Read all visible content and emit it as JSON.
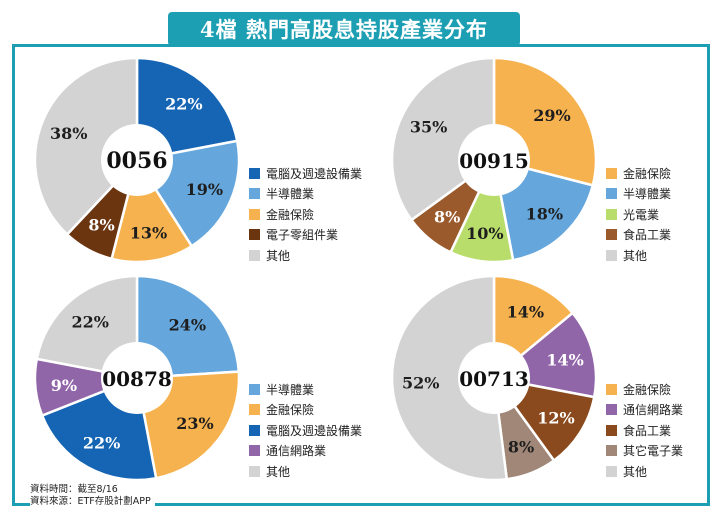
{
  "title": "4檔 熱門高股息持股產業分布",
  "footer": {
    "line1": "資料時間：截至8/16",
    "line2": "資料來源：ETF存股計劃APP"
  },
  "colors": {
    "frame": "#1c9fb3",
    "other": "#d3d3d3"
  },
  "chart_data": [
    {
      "type": "pie",
      "center_label": "0056",
      "slices": [
        {
          "label": "電腦及週邊設備業",
          "value": 22,
          "display": "22%",
          "color": "#1565b4"
        },
        {
          "label": "半導體業",
          "value": 19,
          "display": "19%",
          "color": "#65a6dc"
        },
        {
          "label": "金融保險",
          "value": 13,
          "display": "13%",
          "color": "#f6b24f"
        },
        {
          "label": "電子零組件業",
          "value": 8,
          "display": "8%",
          "color": "#6b3510"
        },
        {
          "label": "其他",
          "value": 38,
          "display": "38%",
          "color": "#d3d3d3"
        }
      ]
    },
    {
      "type": "pie",
      "center_label": "00915",
      "slices": [
        {
          "label": "金融保險",
          "value": 29,
          "display": "29%",
          "color": "#f6b24f"
        },
        {
          "label": "半導體業",
          "value": 18,
          "display": "18%",
          "color": "#65a6dc"
        },
        {
          "label": "光電業",
          "value": 10,
          "display": "10%",
          "color": "#b9dd6a"
        },
        {
          "label": "食品工業",
          "value": 8,
          "display": "8%",
          "color": "#9a5a2c"
        },
        {
          "label": "其他",
          "value": 35,
          "display": "35%",
          "color": "#d3d3d3"
        }
      ]
    },
    {
      "type": "pie",
      "center_label": "00878",
      "slices": [
        {
          "label": "半導體業",
          "value": 24,
          "display": "24%",
          "color": "#65a6dc"
        },
        {
          "label": "金融保險",
          "value": 23,
          "display": "23%",
          "color": "#f6b24f"
        },
        {
          "label": "電腦及週邊設備業",
          "value": 22,
          "display": "22%",
          "color": "#1565b4"
        },
        {
          "label": "通信網路業",
          "value": 9,
          "display": "9%",
          "color": "#9066a8"
        },
        {
          "label": "其他",
          "value": 22,
          "display": "22%",
          "color": "#d3d3d3"
        }
      ]
    },
    {
      "type": "pie",
      "center_label": "00713",
      "slices": [
        {
          "label": "金融保險",
          "value": 14,
          "display": "14%",
          "color": "#f6b24f"
        },
        {
          "label": "通信網路業",
          "value": 14,
          "display": "14%",
          "color": "#9066a8"
        },
        {
          "label": "食品工業",
          "value": 12,
          "display": "12%",
          "color": "#8a4a1e"
        },
        {
          "label": "其它電子業",
          "value": 8,
          "display": "8%",
          "color": "#a08778"
        },
        {
          "label": "其他",
          "value": 52,
          "display": "52%",
          "color": "#d3d3d3"
        }
      ]
    }
  ]
}
